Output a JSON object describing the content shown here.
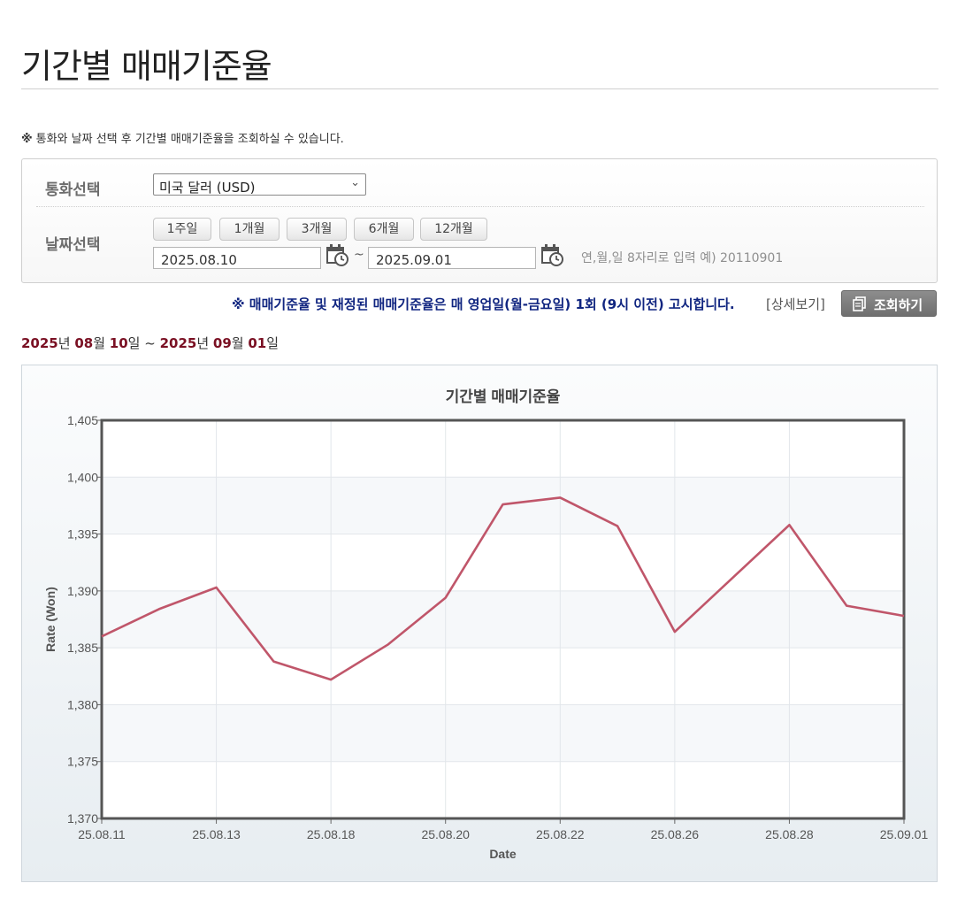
{
  "page": {
    "title": "기간별 매매기준율",
    "notice_mark": "※",
    "notice_text": "통화와 날짜 선택 후 기간별 매매기준율을 조회하실 수 있습니다."
  },
  "search": {
    "currency_label": "통화선택",
    "currency_value": "미국 달러 (USD)",
    "date_label": "날짜선택",
    "period_buttons": [
      "1주일",
      "1개월",
      "3개월",
      "6개월",
      "12개월"
    ],
    "start_date": "2025.08.10",
    "end_date": "2025.09.01",
    "separator": "~",
    "date_hint": "연,월,일 8자리로 입력 예) 20110901"
  },
  "announcement": "※ 매매기준율 및 재정된 매매기준율은 매 영업일(월-금요일) 1회 (9시 이전) 고시합니다.",
  "detail_link": "[상세보기]",
  "search_button": "조회하기",
  "range": {
    "y1": "2025",
    "y1_unit": "년 ",
    "m1": "08",
    "m1_unit": "월 ",
    "d1": "10",
    "d1_unit": "일",
    "sep": " ~ ",
    "y2": "2025",
    "y2_unit": "년 ",
    "m2": "09",
    "m2_unit": "월 ",
    "d2": "01",
    "d2_unit": "일"
  },
  "colors": {
    "line": "#c0566a",
    "range_number": "#7a1023",
    "announcement": "#102580"
  },
  "chart_data": {
    "type": "line",
    "title": "기간별 매매기준율",
    "xlabel": "Date",
    "ylabel": "Rate (Won)",
    "ylim": [
      1370,
      1405
    ],
    "yticks": [
      1370,
      1375,
      1380,
      1385,
      1390,
      1395,
      1400,
      1405
    ],
    "ytick_labels": [
      "1,370",
      "1,375",
      "1,380",
      "1,385",
      "1,390",
      "1,395",
      "1,400",
      "1,405"
    ],
    "xtick_labels": [
      "25.08.11",
      "25.08.13",
      "25.08.18",
      "25.08.20",
      "25.08.22",
      "25.08.26",
      "25.08.28",
      "25.09.01"
    ],
    "grid": true,
    "series": [
      {
        "values": [
          1386.0,
          1388.4,
          1390.3,
          1383.8,
          1382.2,
          1385.3,
          1389.4,
          1397.6,
          1398.2,
          1395.7,
          1386.4,
          1391.1,
          1395.8,
          1388.7,
          1387.8
        ]
      }
    ]
  }
}
